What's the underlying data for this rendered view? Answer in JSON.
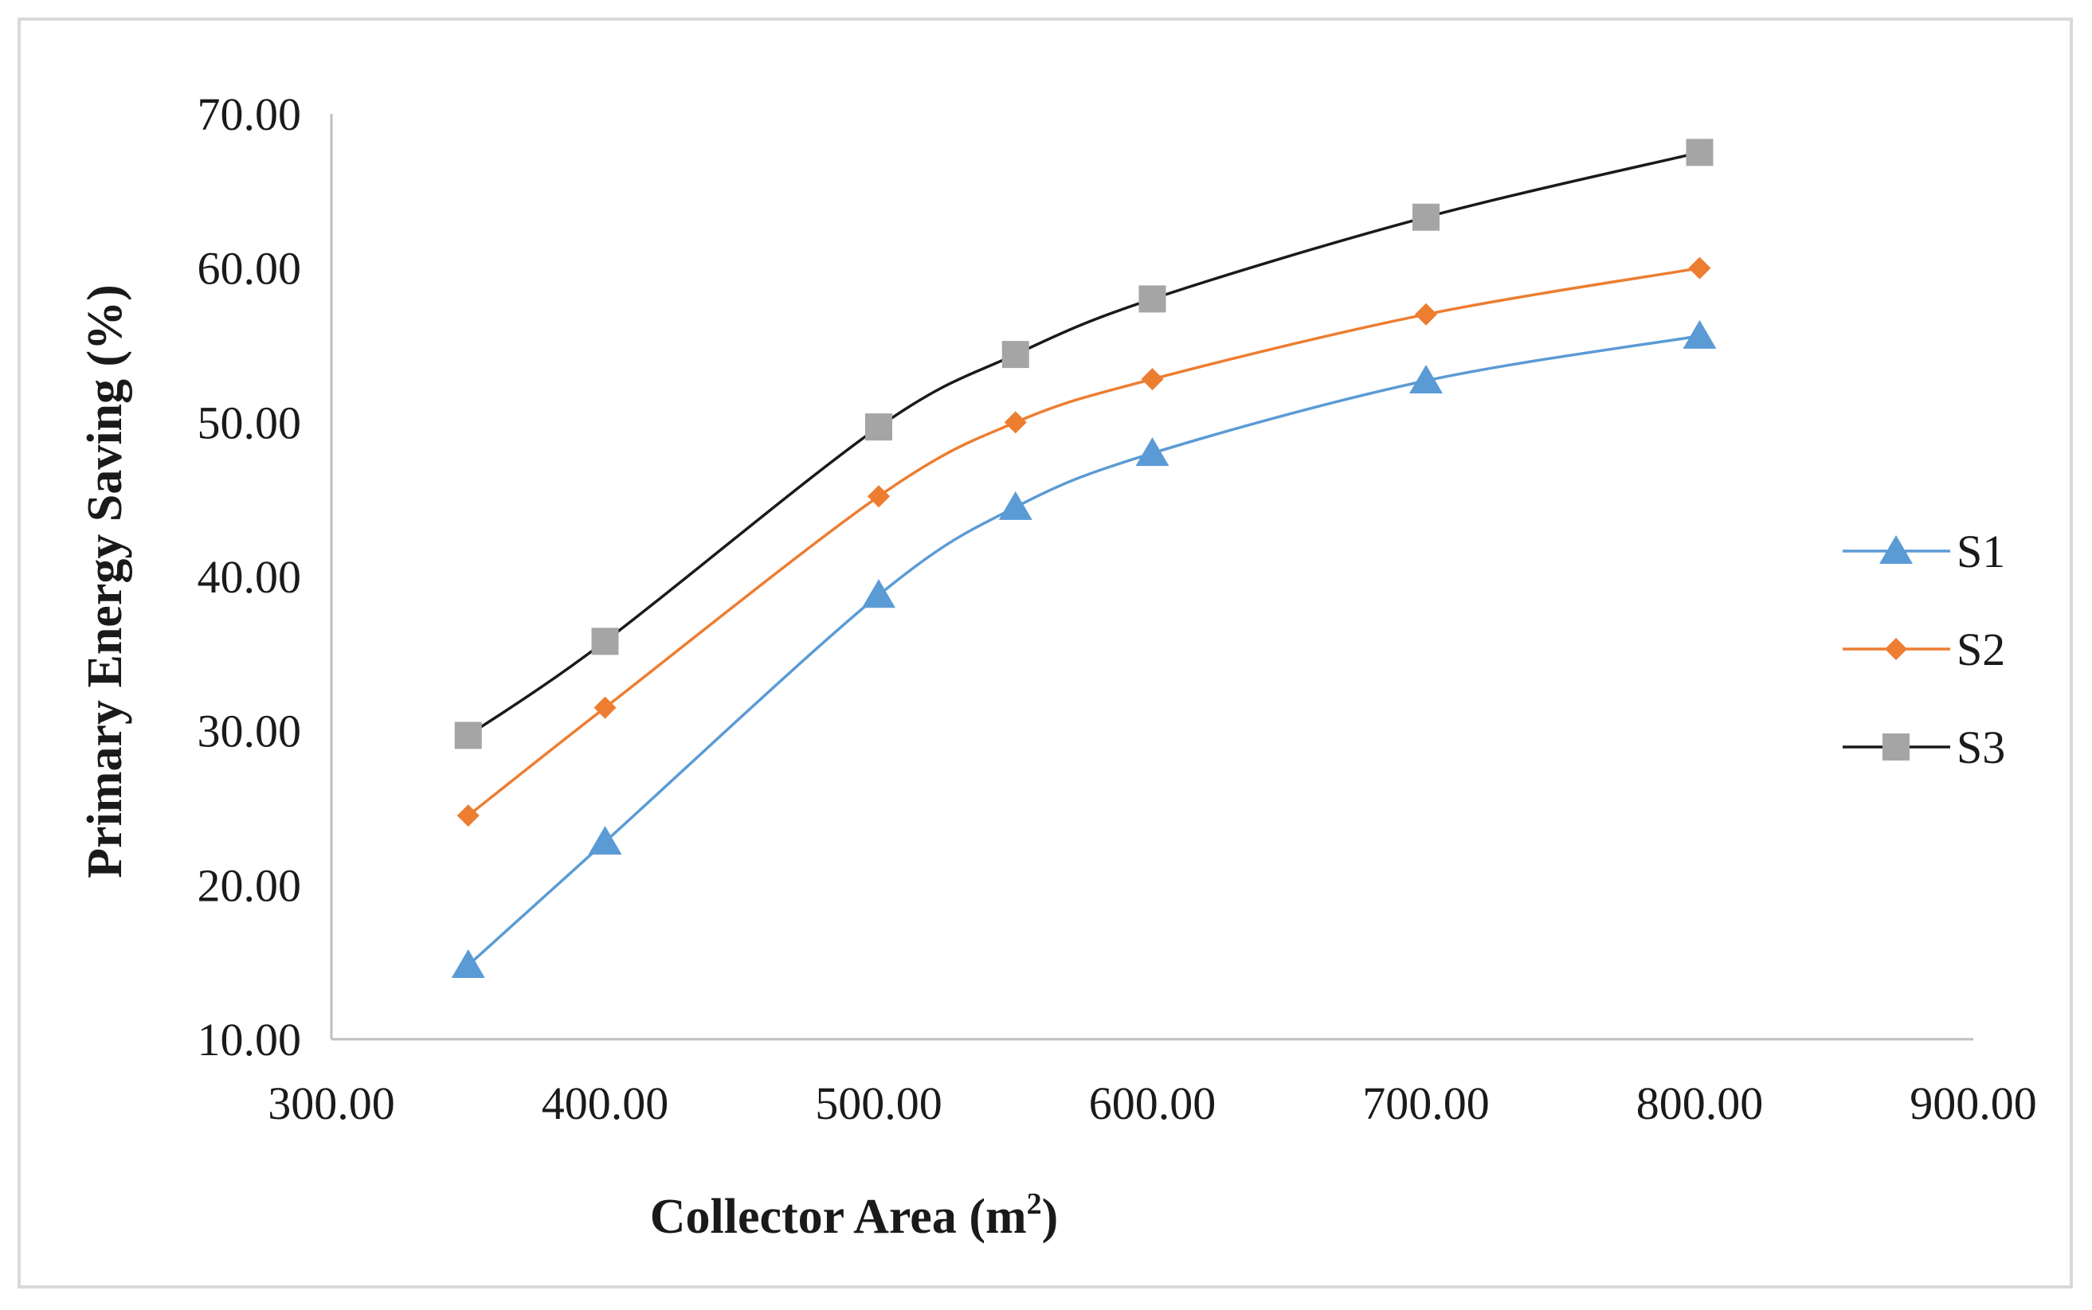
{
  "chart_data": {
    "type": "line",
    "title": "",
    "xlabel_main": "Collector Area (m",
    "xlabel_sup": "2",
    "xlabel_close": ")",
    "ylabel": "Primary Energy Saving (%)",
    "xlim": [
      300,
      900
    ],
    "ylim": [
      10,
      70
    ],
    "x_ticks": [
      300,
      400,
      500,
      600,
      700,
      800,
      900
    ],
    "x_tick_labels": [
      "300.00",
      "400.00",
      "500.00",
      "600.00",
      "700.00",
      "800.00",
      "900.00"
    ],
    "y_ticks": [
      10,
      20,
      30,
      40,
      50,
      60,
      70
    ],
    "y_tick_labels": [
      "10.00",
      "20.00",
      "30.00",
      "40.00",
      "50.00",
      "60.00",
      "70.00"
    ],
    "grid": false,
    "legend_position": "right",
    "x": [
      350,
      400,
      500,
      550,
      600,
      700,
      800
    ],
    "series": [
      {
        "name": "S1",
        "color": "#5b9bd5",
        "marker": "triangle",
        "values": [
          14.8,
          22.8,
          38.8,
          44.5,
          48.0,
          52.7,
          55.6
        ]
      },
      {
        "name": "S2",
        "color": "#ed7d31",
        "marker": "diamond",
        "values": [
          24.5,
          31.5,
          45.2,
          50.0,
          52.8,
          57.0,
          60.0
        ]
      },
      {
        "name": "S3",
        "color": "#1a1a1a",
        "marker_color": "#a5a5a5",
        "marker": "square",
        "values": [
          29.7,
          35.8,
          49.7,
          54.4,
          58.0,
          63.3,
          67.5
        ]
      }
    ]
  }
}
